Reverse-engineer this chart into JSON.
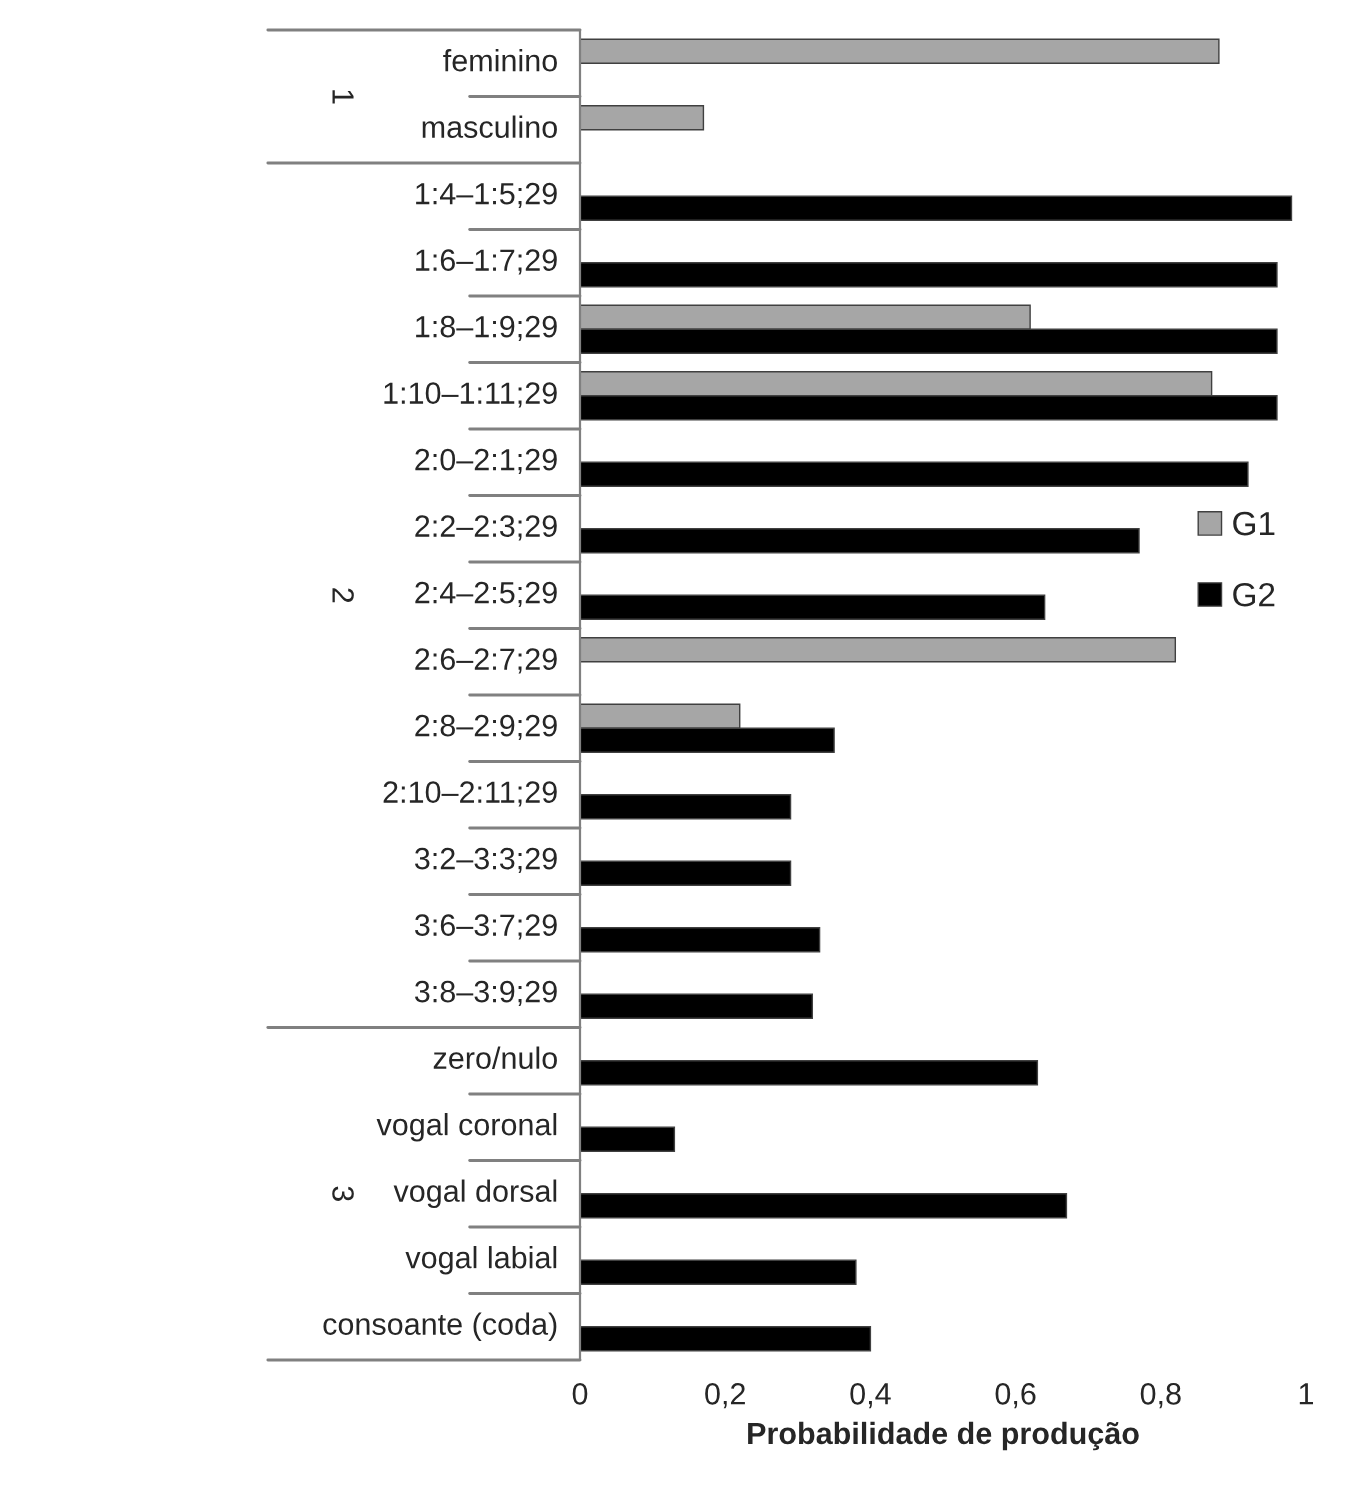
{
  "chart_data": {
    "type": "bar",
    "orientation": "horizontal",
    "xlabel": "Probabilidade de produção",
    "categories": [
      "feminino",
      "masculino",
      "1:4–1:5;29",
      "1:6–1:7;29",
      "1:8–1:9;29",
      "1:10–1:11;29",
      "2:0–2:1;29",
      "2:2–2:3;29",
      "2:4–2:5;29",
      "2:6–2:7;29",
      "2:8–2:9;29",
      "2:10–2:11;29",
      "3:2–3:3;29",
      "3:6–3:7;29",
      "3:8–3:9;29",
      "zero/nulo",
      "vogal coronal",
      "vogal dorsal",
      "vogal labial",
      "consoante (coda)"
    ],
    "series": [
      {
        "name": "G1",
        "color": "#a6a6a6",
        "values": [
          0.88,
          0.17,
          null,
          null,
          0.62,
          0.87,
          null,
          null,
          null,
          0.82,
          0.22,
          null,
          null,
          null,
          null,
          null,
          null,
          null,
          null,
          null
        ]
      },
      {
        "name": "G2",
        "color": "#000000",
        "values": [
          null,
          null,
          0.98,
          0.96,
          0.96,
          0.96,
          0.92,
          0.77,
          0.64,
          null,
          0.35,
          0.29,
          0.29,
          0.33,
          0.32,
          0.63,
          0.13,
          0.67,
          0.38,
          0.4
        ]
      }
    ],
    "xlim": [
      0,
      1
    ],
    "xticks": [
      0,
      {
        "value": 0.2,
        "label": "0,2"
      },
      {
        "value": 0.4,
        "label": "0,4"
      },
      {
        "value": 0.6,
        "label": "0,6"
      },
      {
        "value": 0.8,
        "label": "0,8"
      },
      1
    ],
    "annotations": [
      "1",
      "2",
      "3"
    ],
    "grid": false,
    "legend": "right"
  }
}
